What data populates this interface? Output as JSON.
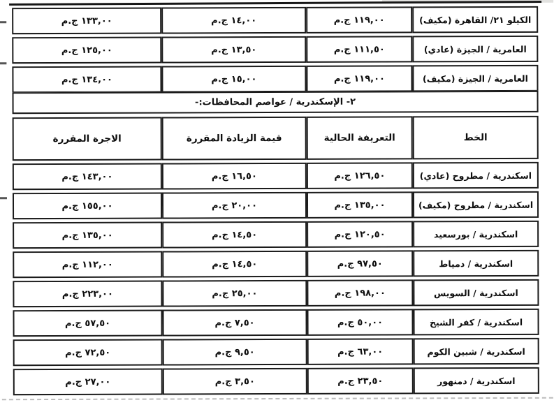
{
  "document": {
    "section_header": {
      "title": "٢- الإسكندرية / عواصم المحافظات:-"
    },
    "columns": {
      "route": "الخط",
      "current": "التعريفة الحالية",
      "increase": "قيمة الزيادة المقررة",
      "fare": "الاجرة المقررة"
    },
    "top_table": {
      "rows": [
        {
          "route": "الكيلو ٢١/ القاهرة (مكيف)",
          "current": "١١٩,٠٠ ج.م",
          "increase": "١٤,٠٠ ج.م",
          "fare": "١٣٣,٠٠ ج.م"
        },
        {
          "route": "العامرية / الجيزة (عادي)",
          "current": "١١١,٥٠ ج.م",
          "increase": "١٣,٥٠ ج.م",
          "fare": "١٢٥,٠٠ ج.م"
        },
        {
          "route": "العامرية / الجيزة (مكيف)",
          "current": "١١٩,٠٠ ج.م",
          "increase": "١٥,٠٠ ج.م",
          "fare": "١٣٤,٠٠ ج.م"
        }
      ]
    },
    "main_table": {
      "rows": [
        {
          "route": "اسكندرية / مطروح (عادي)",
          "current": "١٢٦,٥٠ ج.م",
          "increase": "١٦,٥٠ ج.م",
          "fare": "١٤٣,٠٠ ج.م"
        },
        {
          "route": "اسكندرية / مطروح (مكيف)",
          "current": "١٣٥,٠٠ ج.م",
          "increase": "٢٠,٠٠ ج.م",
          "fare": "١٥٥,٠٠ ج.م"
        },
        {
          "route": "اسكندرية / بورسعيد",
          "current": "١٢٠,٥٠ ج.م",
          "increase": "١٤,٥٠ ج.م",
          "fare": "١٣٥,٠٠ ج.م"
        },
        {
          "route": "اسكندرية / دمياط",
          "current": "٩٧,٥٠ ج.م",
          "increase": "١٤,٥٠ ج.م",
          "fare": "١١٢,٠٠ ج.م"
        },
        {
          "route": "اسكندرية / السويس",
          "current": "١٩٨,٠٠ ج.م",
          "increase": "٢٥,٠٠ ج.م",
          "fare": "٢٢٣,٠٠ ج.م"
        },
        {
          "route": "اسكندرية / كفر الشيخ",
          "current": "٥٠,٠٠ ج.م",
          "increase": "٧,٥٠ ج.م",
          "fare": "٥٧,٥٠ ج.م"
        },
        {
          "route": "اسكندرية / شبين الكوم",
          "current": "٦٣,٠٠ ج.م",
          "increase": "٩,٥٠ ج.م",
          "fare": "٧٢,٥٠ ج.م"
        },
        {
          "route": "اسكندرية / دمنهور",
          "current": "٢٣,٥٠ ج.م",
          "increase": "٣,٥٠ ج.م",
          "fare": "٢٧,٠٠ ج.م"
        }
      ]
    }
  }
}
